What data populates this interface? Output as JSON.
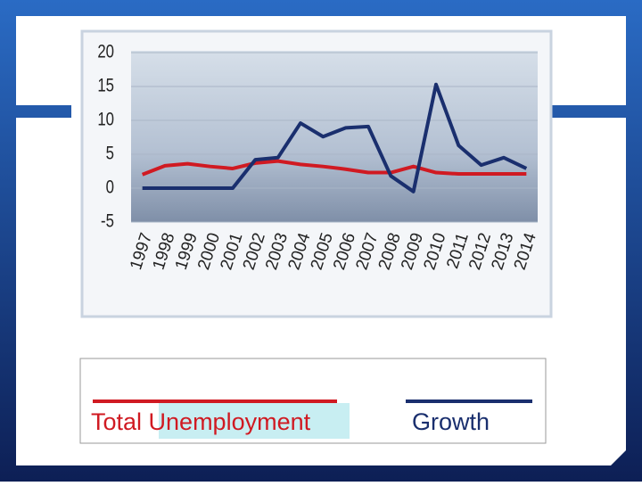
{
  "chart_data": {
    "type": "line",
    "categories": [
      "1997",
      "1998",
      "1999",
      "2000",
      "2001",
      "2002",
      "2003",
      "2004",
      "2005",
      "2006",
      "2007",
      "2008",
      "2009",
      "2010",
      "2011",
      "2012",
      "2013",
      "2014"
    ],
    "series": [
      {
        "name": "Total Unemployment",
        "color": "#d01a22",
        "values": [
          2,
          3.3,
          3.6,
          3.2,
          2.9,
          3.7,
          4,
          3.5,
          3.2,
          2.8,
          2.3,
          2.3,
          3.2,
          2.3,
          2.1,
          2.1,
          2.1,
          2.1
        ]
      },
      {
        "name": "Growth",
        "color": "#1a2f6e",
        "values": [
          0,
          0,
          0,
          0,
          0,
          4.2,
          4.5,
          9.6,
          7.6,
          8.9,
          9.1,
          1.8,
          -0.5,
          15.3,
          6.3,
          3.4,
          4.5,
          2.9
        ]
      }
    ],
    "ylim": [
      -5,
      20
    ],
    "yticks": [
      -5,
      0,
      5,
      10,
      15,
      20
    ],
    "grid": true
  }
}
